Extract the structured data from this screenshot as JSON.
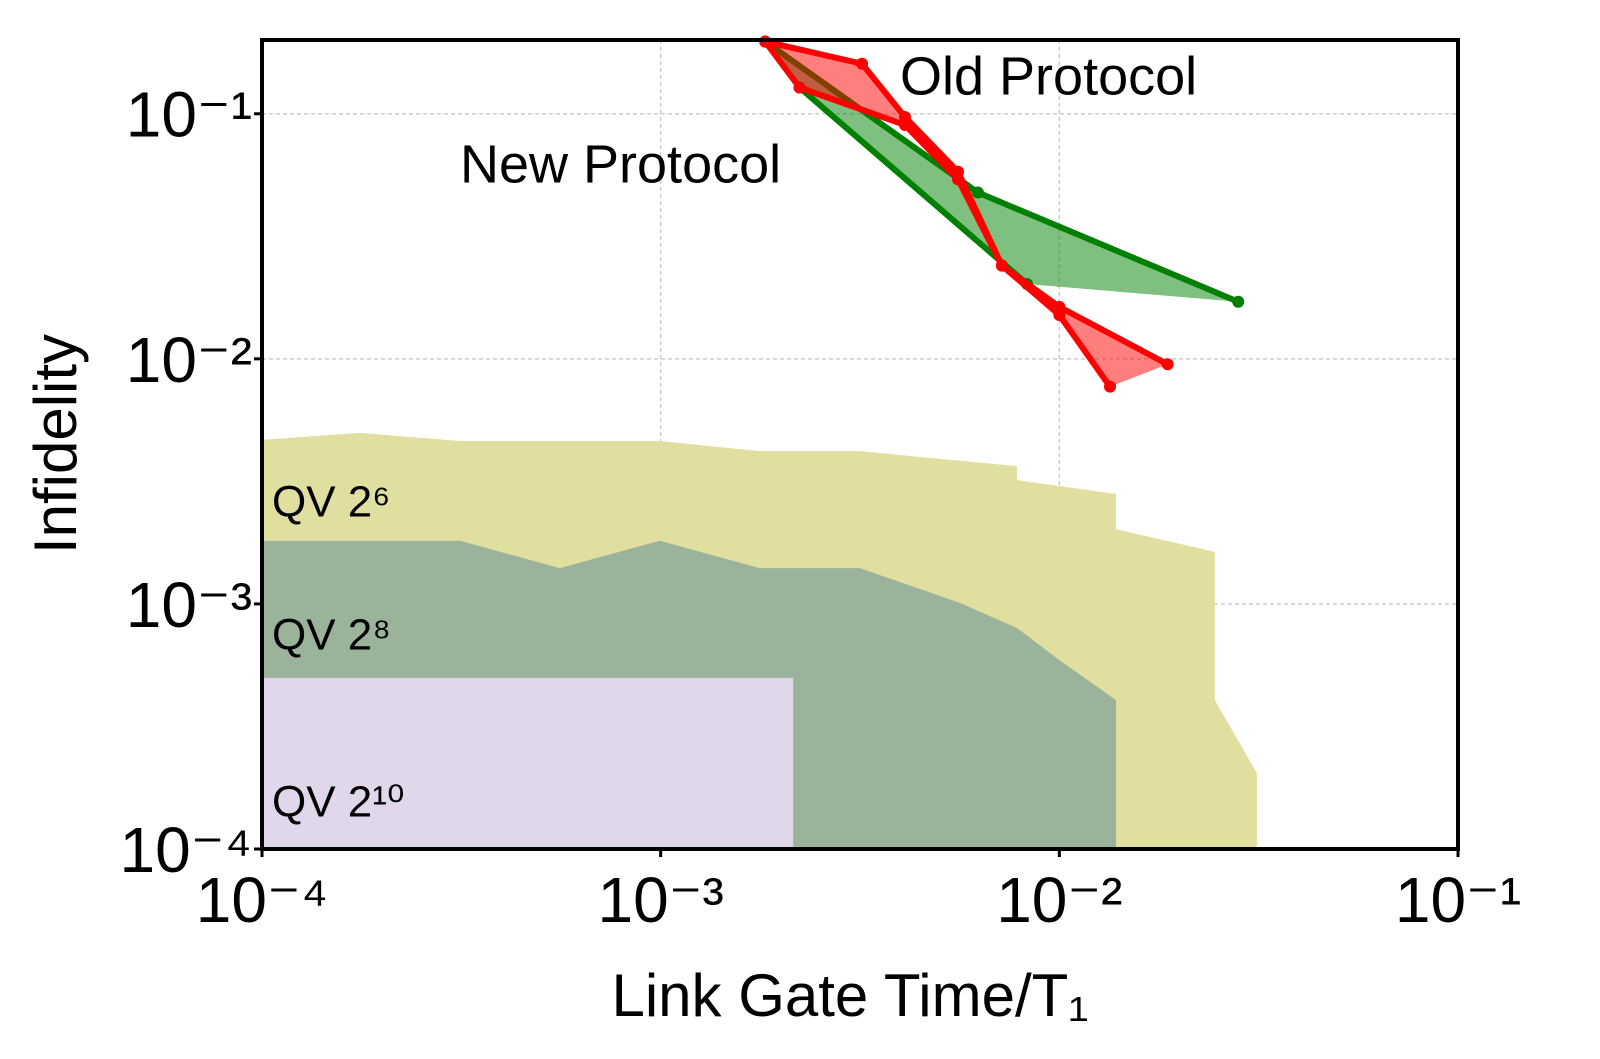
{
  "chart_data": {
    "type": "area",
    "xlabel": "Link Gate Time/T₁",
    "ylabel": "Infidelity",
    "xscale": "log",
    "yscale": "log",
    "grid": true,
    "xlim": [
      0.0001,
      0.1
    ],
    "ylim": [
      0.0001,
      0.2
    ],
    "xticks": [
      {
        "value": 0.0001,
        "label": "10⁻⁴"
      },
      {
        "value": 0.001,
        "label": "10⁻³"
      },
      {
        "value": 0.01,
        "label": "10⁻²"
      },
      {
        "value": 0.1,
        "label": "10⁻¹"
      }
    ],
    "yticks": [
      {
        "value": 0.0001,
        "label": "10⁻⁴"
      },
      {
        "value": 0.001,
        "label": "10⁻³"
      },
      {
        "value": 0.01,
        "label": "10⁻²"
      },
      {
        "value": 0.1,
        "label": "10⁻¹"
      }
    ],
    "series": [
      {
        "name": "QV 2⁶",
        "color": "#e0dfa0",
        "x": [
          0.0001,
          0.000176,
          0.000314,
          0.000995,
          0.00177,
          0.00316,
          0.00783,
          0.00783,
          0.01387,
          0.01387,
          0.02455,
          0.02455,
          0.0313,
          0.0313
        ],
        "values": [
          0.00467,
          0.00499,
          0.00462,
          0.00462,
          0.0042,
          0.0042,
          0.00365,
          0.0032,
          0.00281,
          0.00202,
          0.00163,
          0.000405,
          0.000204,
          0.0001
        ]
      },
      {
        "name": "QV 2⁸",
        "color": "#9ab39a",
        "x": [
          0.0001,
          0.000314,
          0.000558,
          0.000995,
          0.00177,
          0.00316,
          0.00563,
          0.00783,
          0.01,
          0.01387,
          0.01387
        ],
        "values": [
          0.00181,
          0.00181,
          0.0014,
          0.00181,
          0.0014,
          0.0014,
          0.00101,
          0.000798,
          0.00059,
          0.000405,
          0.0001
        ]
      },
      {
        "name": "QV 2¹⁰",
        "color": "#e0d8ea",
        "x": [
          0.0001,
          0.00215,
          0.00215
        ],
        "values": [
          0.000499,
          0.000499,
          0.0001
        ]
      },
      {
        "name": "New Protocol",
        "color": "#008000",
        "band": true,
        "x": [
          0.00183,
          0.00625,
          0.0281
        ],
        "values": [
          0.197,
          0.0477,
          0.0171
        ],
        "x_lower": [
          0.00183,
          0.00223,
          0.0083
        ],
        "lower": [
          0.197,
          0.128,
          0.0202
        ]
      },
      {
        "name": "Old Protocol",
        "color": "#ff0000",
        "band": true,
        "x": [
          0.00183,
          0.0032,
          0.0041,
          0.00557,
          0.00718,
          0.01,
          0.0187
        ],
        "values": [
          0.197,
          0.16,
          0.097,
          0.058,
          0.024,
          0.0163,
          0.0095
        ],
        "x_lower": [
          0.00183,
          0.00223,
          0.0041,
          0.00557,
          0.00718,
          0.01,
          0.0134
        ],
        "lower": [
          0.197,
          0.128,
          0.09,
          0.054,
          0.024,
          0.0151,
          0.0077
        ]
      }
    ]
  }
}
